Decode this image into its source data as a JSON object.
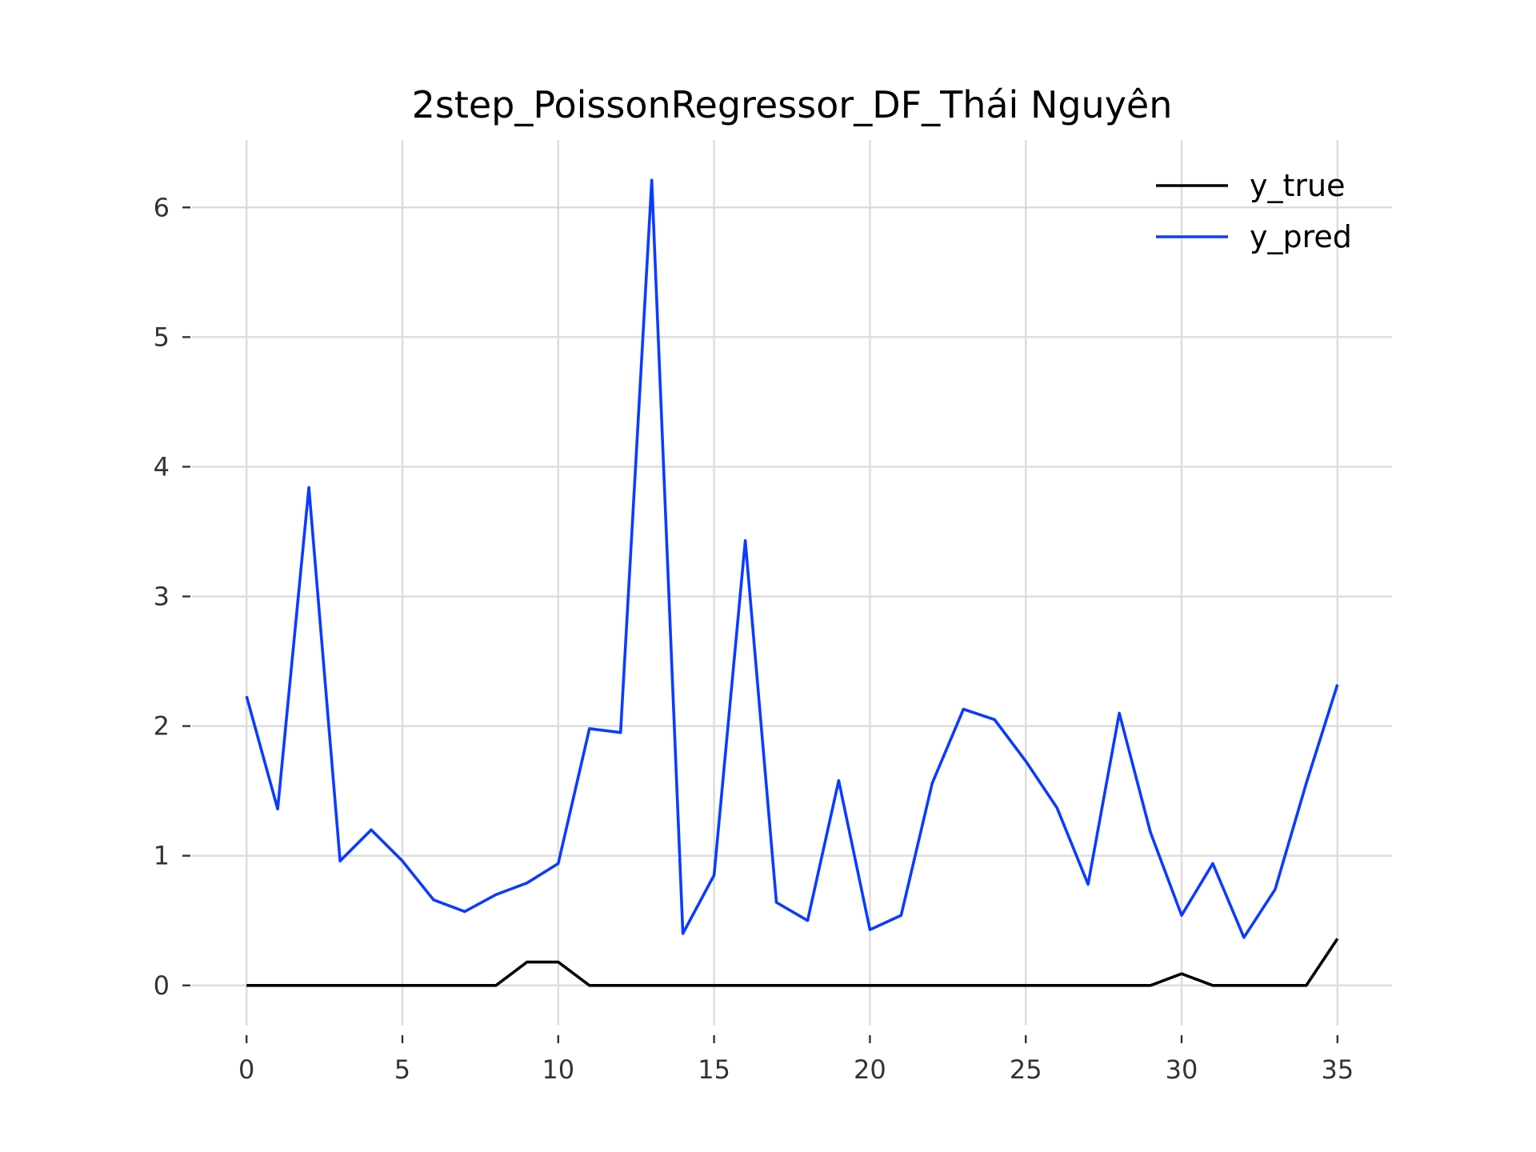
{
  "chart_data": {
    "type": "line",
    "title": "2step_PoissonRegressor_DF_Thái Nguyên",
    "xlabel": "",
    "ylabel": "",
    "xlim": [
      -1.75,
      36.75
    ],
    "ylim": [
      -0.31,
      6.52
    ],
    "xticks": [
      0,
      5,
      10,
      15,
      20,
      25,
      30,
      35
    ],
    "yticks": [
      0,
      1,
      2,
      3,
      4,
      5,
      6
    ],
    "grid": true,
    "legend_position": "top-right",
    "x": [
      0,
      1,
      2,
      3,
      4,
      5,
      6,
      7,
      8,
      9,
      10,
      11,
      12,
      13,
      14,
      15,
      16,
      17,
      18,
      19,
      20,
      21,
      22,
      23,
      24,
      25,
      26,
      27,
      28,
      29,
      30,
      31,
      32,
      33,
      34,
      35
    ],
    "series": [
      {
        "name": "y_true",
        "color": "#000000",
        "values": [
          0,
          0,
          0,
          0,
          0,
          0,
          0,
          0,
          0,
          0.18,
          0.18,
          0,
          0,
          0,
          0,
          0,
          0,
          0,
          0,
          0,
          0,
          0,
          0,
          0,
          0,
          0,
          0,
          0,
          0,
          0,
          0.09,
          0,
          0,
          0,
          0,
          0.36
        ]
      },
      {
        "name": "y_pred",
        "color": "#0a3cff",
        "values": [
          2.23,
          1.36,
          3.84,
          0.96,
          1.2,
          0.96,
          0.66,
          0.57,
          0.7,
          0.79,
          0.94,
          1.98,
          1.95,
          6.21,
          0.4,
          0.85,
          3.43,
          0.64,
          0.5,
          1.58,
          0.43,
          0.54,
          1.56,
          2.13,
          2.05,
          1.73,
          1.37,
          0.78,
          2.1,
          1.18,
          0.54,
          0.94,
          0.37,
          0.74,
          1.56,
          2.32
        ]
      }
    ]
  }
}
